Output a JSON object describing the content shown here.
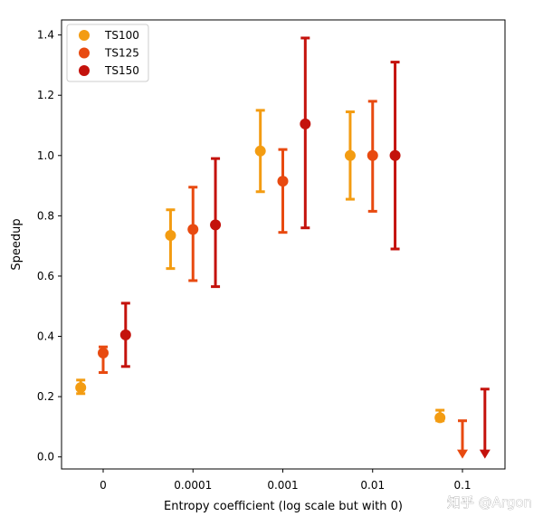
{
  "chart_data": {
    "type": "errorbar",
    "title": "",
    "xlabel": "Entropy coefficient (log scale but with 0)",
    "ylabel": "Speedup",
    "categories": [
      "0",
      "0.0001",
      "0.001",
      "0.01",
      "0.1"
    ],
    "ylim": [
      -0.04,
      1.45
    ],
    "yticks": [
      0.0,
      0.2,
      0.4,
      0.6,
      0.8,
      1.0,
      1.2,
      1.4
    ],
    "ytick_labels": [
      "0.0",
      "0.2",
      "0.4",
      "0.6",
      "0.8",
      "1.0",
      "1.2",
      "1.4"
    ],
    "legend_position": "top-left",
    "series": [
      {
        "name": "TS100",
        "color": "#f39c12",
        "offset": -0.25,
        "values": [
          0.23,
          0.735,
          1.015,
          1.0,
          0.13
        ],
        "lower": [
          0.21,
          0.625,
          0.88,
          0.855,
          0.12
        ],
        "upper": [
          0.255,
          0.82,
          1.15,
          1.145,
          0.155
        ],
        "below_axis": [
          false,
          false,
          false,
          false,
          false
        ]
      },
      {
        "name": "TS125",
        "color": "#e84a10",
        "offset": 0.0,
        "values": [
          0.345,
          0.755,
          0.915,
          1.0,
          null
        ],
        "lower": [
          0.28,
          0.585,
          0.745,
          0.815,
          0.0
        ],
        "upper": [
          0.365,
          0.895,
          1.02,
          1.18,
          0.12
        ],
        "below_axis": [
          false,
          false,
          false,
          false,
          true
        ]
      },
      {
        "name": "TS150",
        "color": "#c4120c",
        "offset": 0.25,
        "values": [
          0.405,
          0.77,
          1.105,
          1.0,
          null
        ],
        "lower": [
          0.3,
          0.565,
          0.76,
          0.69,
          0.0
        ],
        "upper": [
          0.51,
          0.99,
          1.39,
          1.31,
          0.225
        ],
        "below_axis": [
          false,
          false,
          false,
          false,
          true
        ]
      }
    ]
  },
  "watermark": "知乎 @Argon"
}
